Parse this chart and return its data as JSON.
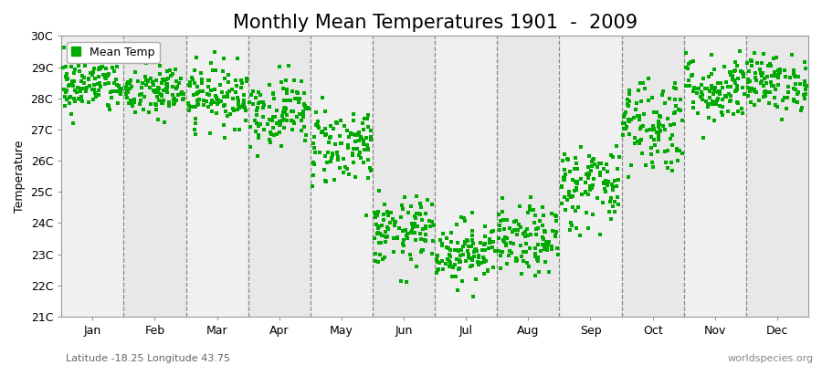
{
  "title": "Monthly Mean Temperatures 1901  -  2009",
  "ylabel": "Temperature",
  "xlabel_labels": [
    "Jan",
    "Feb",
    "Mar",
    "Apr",
    "May",
    "Jun",
    "Jul",
    "Aug",
    "Sep",
    "Oct",
    "Nov",
    "Dec"
  ],
  "ylim": [
    21,
    30
  ],
  "ytick_labels": [
    "21C",
    "22C",
    "23C",
    "24C",
    "25C",
    "26C",
    "27C",
    "28C",
    "29C",
    "30C"
  ],
  "ytick_values": [
    21,
    22,
    23,
    24,
    25,
    26,
    27,
    28,
    29,
    30
  ],
  "monthly_means": [
    28.4,
    28.2,
    28.1,
    27.6,
    26.5,
    23.7,
    23.1,
    23.4,
    25.2,
    27.2,
    28.3,
    28.5
  ],
  "monthly_stds": [
    0.45,
    0.45,
    0.5,
    0.55,
    0.65,
    0.55,
    0.5,
    0.55,
    0.7,
    0.8,
    0.55,
    0.45
  ],
  "n_years": 109,
  "dot_color": "#00aa00",
  "dot_size": 5,
  "bg_color": "#ffffff",
  "band_colors": [
    "#f0f0f0",
    "#e8e8e8"
  ],
  "dashed_line_color": "#888888",
  "legend_label": "Mean Temp",
  "footer_left": "Latitude -18.25 Longitude 43.75",
  "footer_right": "worldspecies.org",
  "title_fontsize": 15,
  "axis_label_fontsize": 9,
  "tick_fontsize": 9,
  "footer_fontsize": 8
}
